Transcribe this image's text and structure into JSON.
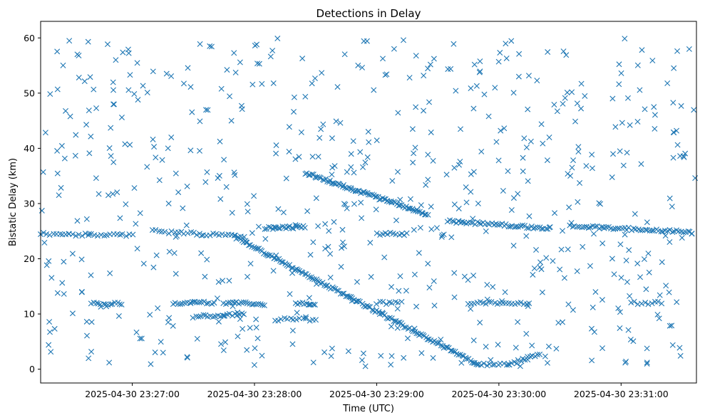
{
  "chart_data": {
    "type": "scatter",
    "title": "Detections in Delay",
    "xlabel": "Time (UTC)",
    "ylabel": "Bistatic Delay (km)",
    "xlim": [
      "2025-04-30 23:26:15",
      "2025-04-30 23:31:37"
    ],
    "ylim": [
      -2.5,
      63
    ],
    "x_ticks": [
      "2025-04-30 23:27:00",
      "2025-04-30 23:28:00",
      "2025-04-30 23:29:00",
      "2025-04-30 23:30:00",
      "2025-04-30 23:31:00"
    ],
    "y_ticks": [
      0,
      10,
      20,
      30,
      40,
      50,
      60
    ],
    "grid": false,
    "marker": "x",
    "marker_color": "#1f77b4",
    "series": [
      {
        "tracks": [
          {
            "from": [
              "2025-04-30 23:27:50",
              24.0
            ],
            "to": [
              "2025-04-30 23:29:50",
              0.8
            ],
            "points": 150
          },
          {
            "from": [
              "2025-04-30 23:29:50",
              0.8
            ],
            "to": [
              "2025-04-30 23:30:05",
              0.8
            ],
            "points": 12
          },
          {
            "from": [
              "2025-04-30 23:30:05",
              0.8
            ],
            "to": [
              "2025-04-30 23:30:20",
              2.8
            ],
            "points": 14
          },
          {
            "from": [
              "2025-04-30 23:28:25",
              35.5
            ],
            "to": [
              "2025-04-30 23:29:25",
              28.0
            ],
            "points": 80
          },
          {
            "from": [
              "2025-04-30 23:29:35",
              26.8
            ],
            "to": [
              "2025-04-30 23:30:25",
              25.5
            ],
            "points": 50
          },
          {
            "from": [
              "2025-04-30 23:30:35",
              26.0
            ],
            "to": [
              "2025-04-30 23:31:35",
              24.8
            ],
            "points": 55
          },
          {
            "from": [
              "2025-04-30 23:26:15",
              24.5
            ],
            "to": [
              "2025-04-30 23:27:00",
              24.2
            ],
            "points": 30
          },
          {
            "from": [
              "2025-04-30 23:27:10",
              25.0
            ],
            "to": [
              "2025-04-30 23:27:55",
              24.0
            ],
            "points": 30
          },
          {
            "from": [
              "2025-04-30 23:28:05",
              25.5
            ],
            "to": [
              "2025-04-30 23:28:25",
              25.8
            ],
            "points": 22
          },
          {
            "from": [
              "2025-04-30 23:29:00",
              24.5
            ],
            "to": [
              "2025-04-30 23:29:15",
              24.5
            ],
            "points": 12
          },
          {
            "from": [
              "2025-04-30 23:26:40",
              12.0
            ],
            "to": [
              "2025-04-30 23:26:55",
              11.8
            ],
            "points": 14
          },
          {
            "from": [
              "2025-04-30 23:27:20",
              12.0
            ],
            "to": [
              "2025-04-30 23:27:40",
              12.0
            ],
            "points": 18
          },
          {
            "from": [
              "2025-04-30 23:27:45",
              12.0
            ],
            "to": [
              "2025-04-30 23:28:05",
              11.8
            ],
            "points": 20
          },
          {
            "from": [
              "2025-04-30 23:28:20",
              12.0
            ],
            "to": [
              "2025-04-30 23:28:30",
              11.5
            ],
            "points": 10
          },
          {
            "from": [
              "2025-04-30 23:29:45",
              12.0
            ],
            "to": [
              "2025-04-30 23:30:15",
              12.0
            ],
            "points": 22
          },
          {
            "from": [
              "2025-04-30 23:27:30",
              9.5
            ],
            "to": [
              "2025-04-30 23:27:55",
              10.0
            ],
            "points": 22
          },
          {
            "from": [
              "2025-04-30 23:28:10",
              9.0
            ],
            "to": [
              "2025-04-30 23:28:30",
              9.0
            ],
            "points": 14
          },
          {
            "from": [
              "2025-04-30 23:29:00",
              12.0
            ],
            "to": [
              "2025-04-30 23:29:12",
              12.0
            ],
            "points": 9
          },
          {
            "from": [
              "2025-04-30 23:31:05",
              12.0
            ],
            "to": [
              "2025-04-30 23:31:20",
              12.0
            ],
            "points": 10
          }
        ],
        "scatter": {
          "points": 620,
          "x_range": [
            "2025-04-30 23:26:15",
            "2025-04-30 23:31:37"
          ],
          "y_range": [
            0.5,
            60
          ]
        }
      }
    ]
  }
}
